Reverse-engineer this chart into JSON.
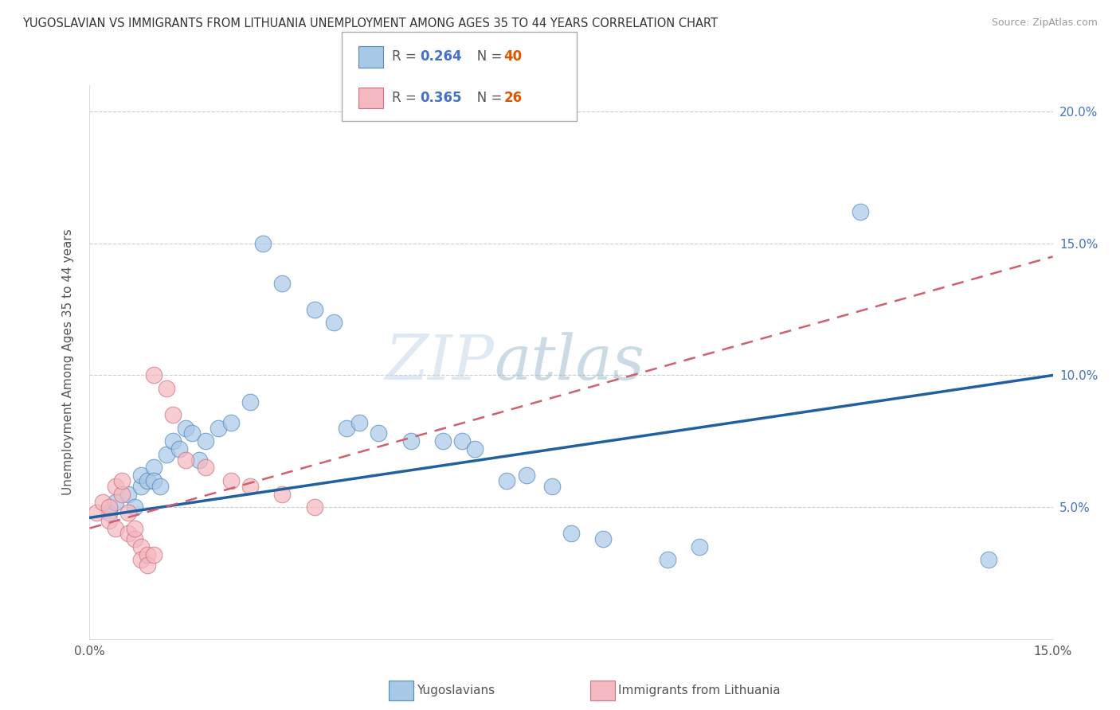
{
  "title": "YUGOSLAVIAN VS IMMIGRANTS FROM LITHUANIA UNEMPLOYMENT AMONG AGES 35 TO 44 YEARS CORRELATION CHART",
  "source": "Source: ZipAtlas.com",
  "ylabel": "Unemployment Among Ages 35 to 44 years",
  "xmin": 0.0,
  "xmax": 0.15,
  "ymin": 0.0,
  "ymax": 0.21,
  "watermark": "ZIPatlas",
  "legend_blue_R": "R = 0.264",
  "legend_blue_N": "N = 40",
  "legend_pink_R": "R = 0.365",
  "legend_pink_N": "N = 26",
  "blue_color": "#a8c8e8",
  "blue_edge_color": "#5588bb",
  "pink_color": "#f4b8c0",
  "pink_edge_color": "#d07080",
  "blue_line_color": "#2060a0",
  "pink_line_color": "#d06070",
  "blue_scatter": [
    [
      0.003,
      0.048
    ],
    [
      0.004,
      0.052
    ],
    [
      0.006,
      0.055
    ],
    [
      0.007,
      0.05
    ],
    [
      0.008,
      0.058
    ],
    [
      0.008,
      0.062
    ],
    [
      0.009,
      0.06
    ],
    [
      0.01,
      0.065
    ],
    [
      0.01,
      0.06
    ],
    [
      0.011,
      0.058
    ],
    [
      0.012,
      0.07
    ],
    [
      0.013,
      0.075
    ],
    [
      0.014,
      0.072
    ],
    [
      0.015,
      0.08
    ],
    [
      0.016,
      0.078
    ],
    [
      0.017,
      0.068
    ],
    [
      0.018,
      0.075
    ],
    [
      0.02,
      0.08
    ],
    [
      0.022,
      0.082
    ],
    [
      0.025,
      0.09
    ],
    [
      0.027,
      0.15
    ],
    [
      0.03,
      0.135
    ],
    [
      0.035,
      0.125
    ],
    [
      0.038,
      0.12
    ],
    [
      0.04,
      0.08
    ],
    [
      0.042,
      0.082
    ],
    [
      0.045,
      0.078
    ],
    [
      0.05,
      0.075
    ],
    [
      0.055,
      0.075
    ],
    [
      0.058,
      0.075
    ],
    [
      0.06,
      0.072
    ],
    [
      0.065,
      0.06
    ],
    [
      0.068,
      0.062
    ],
    [
      0.072,
      0.058
    ],
    [
      0.075,
      0.04
    ],
    [
      0.08,
      0.038
    ],
    [
      0.09,
      0.03
    ],
    [
      0.095,
      0.035
    ],
    [
      0.12,
      0.162
    ],
    [
      0.14,
      0.03
    ]
  ],
  "pink_scatter": [
    [
      0.001,
      0.048
    ],
    [
      0.002,
      0.052
    ],
    [
      0.003,
      0.045
    ],
    [
      0.003,
      0.05
    ],
    [
      0.004,
      0.058
    ],
    [
      0.004,
      0.042
    ],
    [
      0.005,
      0.055
    ],
    [
      0.005,
      0.06
    ],
    [
      0.006,
      0.048
    ],
    [
      0.006,
      0.04
    ],
    [
      0.007,
      0.038
    ],
    [
      0.007,
      0.042
    ],
    [
      0.008,
      0.035
    ],
    [
      0.008,
      0.03
    ],
    [
      0.009,
      0.032
    ],
    [
      0.009,
      0.028
    ],
    [
      0.01,
      0.032
    ],
    [
      0.01,
      0.1
    ],
    [
      0.012,
      0.095
    ],
    [
      0.013,
      0.085
    ],
    [
      0.015,
      0.068
    ],
    [
      0.018,
      0.065
    ],
    [
      0.022,
      0.06
    ],
    [
      0.025,
      0.058
    ],
    [
      0.03,
      0.055
    ],
    [
      0.035,
      0.05
    ]
  ],
  "blue_line_x": [
    0.0,
    0.15
  ],
  "blue_line_y": [
    0.046,
    0.1
  ],
  "pink_line_x": [
    0.0,
    0.15
  ],
  "pink_line_y": [
    0.042,
    0.145
  ]
}
